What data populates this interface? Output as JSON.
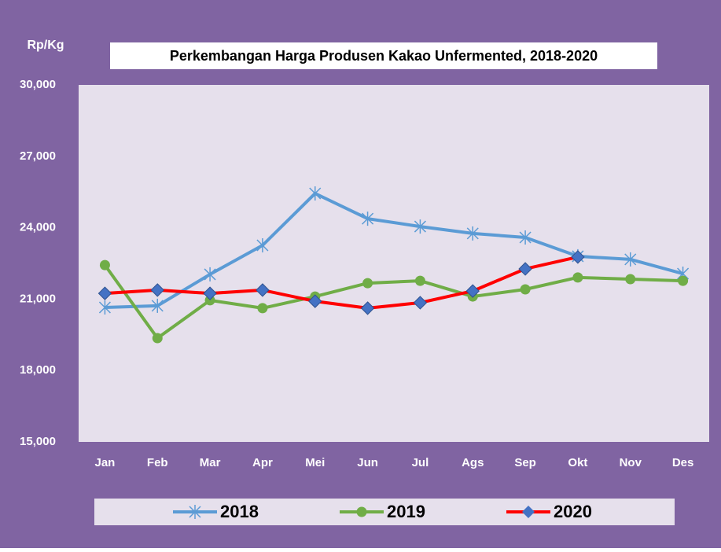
{
  "chart_data": {
    "type": "line",
    "title": "Perkembangan Harga Produsen Kakao Unfermented, 2018-2020",
    "y_axis_label": "Rp/Kg",
    "categories": [
      "Jan",
      "Feb",
      "Mar",
      "Apr",
      "Mei",
      "Jun",
      "Jul",
      "Ags",
      "Sep",
      "Okt",
      "Nov",
      "Des"
    ],
    "series": [
      {
        "name": "2018",
        "color": "#5b9bd5",
        "marker": "star",
        "values": [
          20650,
          20720,
          22040,
          23260,
          25440,
          24380,
          24050,
          23760,
          23590,
          22800,
          22670,
          22070
        ]
      },
      {
        "name": "2019",
        "color": "#70ad47",
        "marker": "circle",
        "values": [
          22430,
          19360,
          20950,
          20620,
          21110,
          21670,
          21770,
          21110,
          21410,
          21910,
          21840,
          21770
        ]
      },
      {
        "name": "2020",
        "color": "#ff0000",
        "marker": "diamond",
        "values": [
          21240,
          21380,
          21240,
          21380,
          20910,
          20620,
          20850,
          21340,
          22270,
          22770,
          null,
          null
        ]
      }
    ],
    "ylim": [
      15000,
      30000
    ],
    "yticks": [
      {
        "value": 15000,
        "label": "15,000"
      },
      {
        "value": 18000,
        "label": "18,000"
      },
      {
        "value": 21000,
        "label": "21,000"
      },
      {
        "value": 24000,
        "label": "24,000"
      },
      {
        "value": 27000,
        "label": "27,000"
      },
      {
        "value": 30000,
        "label": "30,000"
      }
    ],
    "legend": "bottom"
  }
}
